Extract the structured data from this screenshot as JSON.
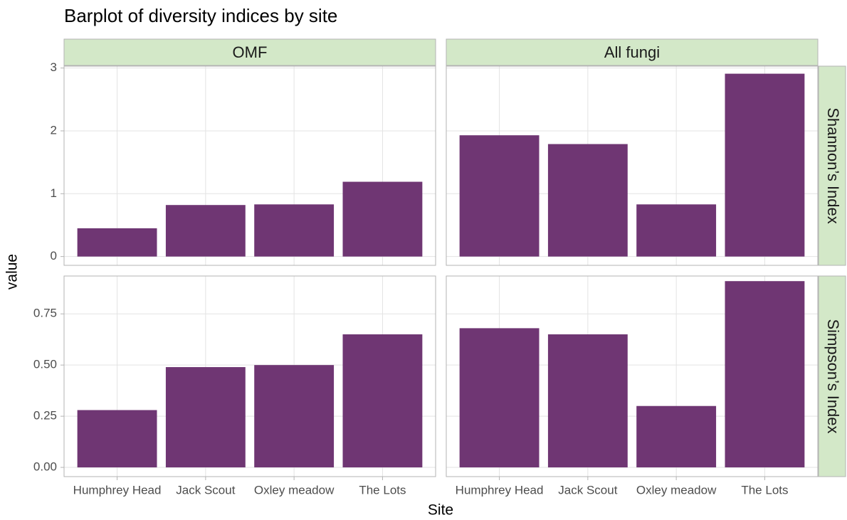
{
  "title": "Barplot of diversity indices by site",
  "xlabel": "Site",
  "ylabel": "value",
  "categories": [
    "Humphrey Head",
    "Jack Scout",
    "Oxley meadow",
    "The Lots"
  ],
  "columns": [
    "OMF",
    "All fungi"
  ],
  "rows": [
    {
      "label": "Shannon’s Index",
      "ylim": [
        -0.14,
        3.03
      ],
      "yticks": [
        0,
        1,
        2,
        3
      ]
    },
    {
      "label": "Simpson’s Index",
      "ylim": [
        -0.045,
        0.935
      ],
      "yticks": [
        {
          "value": 0,
          "label": "0.00"
        },
        {
          "value": 0.25,
          "label": "0.25"
        },
        {
          "value": 0.5,
          "label": "0.50"
        },
        {
          "value": 0.75,
          "label": "0.75"
        }
      ]
    }
  ],
  "color": "#6f3673",
  "chart_data": [
    {
      "type": "bar",
      "values": [
        0.45,
        0.82,
        0.83,
        1.19
      ]
    },
    {
      "type": "bar",
      "values": [
        1.93,
        1.79,
        0.83,
        2.91
      ]
    },
    {
      "type": "bar",
      "values": [
        0.28,
        0.49,
        0.5,
        0.65
      ]
    },
    {
      "type": "bar",
      "values": [
        0.68,
        0.65,
        0.3,
        0.91
      ]
    }
  ]
}
